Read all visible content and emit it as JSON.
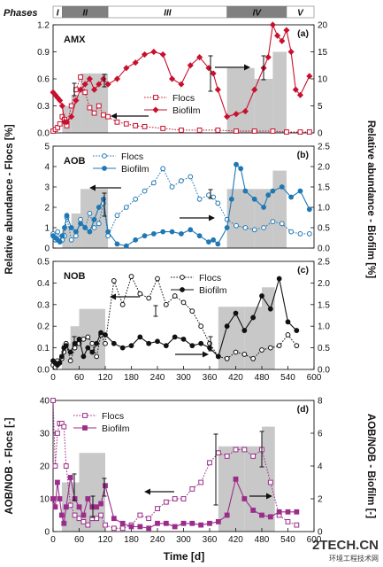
{
  "phases_label": "Phases",
  "phases": [
    {
      "name": "I",
      "from": 0,
      "to": 20,
      "shade": "#ffffff"
    },
    {
      "name": "II",
      "from": 20,
      "to": 120,
      "shade": "#808080"
    },
    {
      "name": "III",
      "from": 120,
      "to": 380,
      "shade": "#ffffff"
    },
    {
      "name": "IV",
      "from": 380,
      "to": 510,
      "shade": "#808080"
    },
    {
      "name": "V",
      "from": 510,
      "to": 570,
      "shade": "#ffffff"
    }
  ],
  "xlabel": "Time [d]",
  "ylabel_left": "Relative abundance - Flocs [%]",
  "ylabel_right": "Relative abundance - Biofilm [%]",
  "ylabel_left_d": "AOB/NOB - Flocs [-]",
  "ylabel_right_d": "AOB/NOB - Biofilm [-]",
  "watermark": "2TECH.CN",
  "watermark_sub": "环境工程技术网",
  "colors": {
    "amx": "#c8102e",
    "aob": "#1f77b4",
    "nob": "#111111",
    "ratio": "#9b2d8a",
    "bars": "#c8c8c8"
  },
  "chart_data": [
    {
      "type": "line",
      "tag": "AMX",
      "letter": "(a)",
      "xlim": [
        0,
        570
      ],
      "ylim_left": [
        0,
        1.2
      ],
      "ylim_right": [
        0,
        20
      ],
      "yticks_left": [
        "0.0",
        "0.3",
        "0.6",
        "0.9",
        "1.2"
      ],
      "yticks_right": [
        "0",
        "5",
        "10",
        "15",
        "20"
      ],
      "bars": [
        {
          "from": 20,
          "to": 40,
          "value": 5
        },
        {
          "from": 40,
          "to": 60,
          "value": 7
        },
        {
          "from": 60,
          "to": 120,
          "value": 11
        },
        {
          "from": 380,
          "to": 440,
          "value": 12
        },
        {
          "from": 440,
          "to": 480,
          "value": 10
        },
        {
          "from": 480,
          "to": 510,
          "value": 15
        }
      ],
      "series": [
        {
          "name": "Flocs",
          "axis": "left",
          "style": "dotted",
          "marker": "open-square",
          "x": [
            0,
            5,
            10,
            15,
            20,
            25,
            30,
            40,
            50,
            60,
            70,
            80,
            90,
            100,
            110,
            120,
            140,
            160,
            180,
            200,
            240,
            280,
            320,
            360,
            400,
            440,
            480,
            510,
            540,
            560
          ],
          "y": [
            0.02,
            0.04,
            0.06,
            0.1,
            0.18,
            0.15,
            0.08,
            0.3,
            0.48,
            0.62,
            0.45,
            0.28,
            0.22,
            0.3,
            0.2,
            0.18,
            0.12,
            0.1,
            0.08,
            0.07,
            0.05,
            0.03,
            0.03,
            0.03,
            0.02,
            0.02,
            0.02,
            0.01,
            0.01,
            0.01
          ]
        },
        {
          "name": "Biofilm",
          "axis": "right",
          "style": "solid",
          "marker": "filled-diamond",
          "x": [
            0,
            5,
            10,
            15,
            20,
            25,
            30,
            40,
            50,
            60,
            70,
            80,
            90,
            100,
            110,
            120,
            140,
            160,
            180,
            200,
            220,
            240,
            260,
            280,
            300,
            320,
            340,
            350,
            360,
            380,
            400,
            420,
            440,
            460,
            470,
            480,
            490,
            500,
            510,
            520,
            530,
            540,
            560
          ],
          "y": [
            7.5,
            7,
            6.5,
            6,
            5,
            2,
            2,
            3,
            6,
            8,
            9,
            10,
            8,
            9,
            10,
            9,
            10,
            12,
            13,
            14.5,
            15,
            14.5,
            10,
            9,
            12.5,
            14,
            12,
            11,
            8,
            3,
            3.5,
            4,
            8,
            12,
            14,
            20,
            18,
            17,
            19,
            15,
            8,
            7,
            10.5
          ]
        }
      ],
      "legend": [
        "Flocs",
        "Biofilm"
      ]
    },
    {
      "type": "line",
      "tag": "AOB",
      "letter": "(b)",
      "xlim": [
        0,
        570
      ],
      "ylim_left": [
        0,
        5
      ],
      "ylim_right": [
        0,
        2.5
      ],
      "yticks_left": [
        "0",
        "1",
        "2",
        "3",
        "4",
        "5"
      ],
      "yticks_right": [
        "0.0",
        "0.5",
        "1.0",
        "1.5",
        "2.0",
        "2.5"
      ],
      "bars": [
        {
          "from": 20,
          "to": 40,
          "value": 0.55
        },
        {
          "from": 40,
          "to": 60,
          "value": 0.85
        },
        {
          "from": 60,
          "to": 120,
          "value": 1.45
        },
        {
          "from": 380,
          "to": 440,
          "value": 1.45
        },
        {
          "from": 440,
          "to": 480,
          "value": 1.45
        },
        {
          "from": 480,
          "to": 510,
          "value": 1.9
        }
      ],
      "series": [
        {
          "name": "Flocs",
          "axis": "left",
          "style": "dotted",
          "marker": "open-circle",
          "x": [
            0,
            5,
            10,
            15,
            20,
            25,
            30,
            40,
            50,
            60,
            70,
            80,
            90,
            100,
            110,
            120,
            140,
            160,
            180,
            200,
            220,
            240,
            260,
            280,
            300,
            320,
            340,
            350,
            360,
            380,
            400,
            420,
            440,
            460,
            480,
            500,
            520,
            540,
            560
          ],
          "y": [
            0.7,
            0.4,
            0.8,
            0.5,
            0.4,
            0.6,
            1.5,
            0.4,
            0.6,
            1.4,
            1.0,
            1.7,
            1.0,
            1.2,
            2.2,
            0.6,
            1.6,
            2.0,
            2.4,
            2.8,
            3.2,
            3.9,
            3.0,
            3.3,
            3.5,
            2.4,
            2.6,
            2.5,
            2.2,
            1.4,
            1.1,
            1.0,
            0.9,
            1.0,
            1.3,
            1.2,
            0.8,
            0.7,
            0.7
          ]
        },
        {
          "name": "Biofilm",
          "axis": "right",
          "style": "solid",
          "marker": "filled-circle",
          "x": [
            0,
            5,
            10,
            15,
            20,
            25,
            30,
            40,
            50,
            60,
            70,
            80,
            90,
            100,
            110,
            120,
            140,
            160,
            180,
            200,
            220,
            240,
            260,
            280,
            300,
            320,
            340,
            350,
            360,
            380,
            390,
            400,
            410,
            420,
            440,
            460,
            470,
            480,
            500,
            520,
            540,
            560
          ],
          "y": [
            0.3,
            0.25,
            0.2,
            0.15,
            0.3,
            0.5,
            0.8,
            0.5,
            0.4,
            0.6,
            0.5,
            0.4,
            0.7,
            1.0,
            1.2,
            0.4,
            0.1,
            0.05,
            0.2,
            0.3,
            0.35,
            0.4,
            0.4,
            0.35,
            0.45,
            0.3,
            0.15,
            0.2,
            0.1,
            0.5,
            1.2,
            2.05,
            1.95,
            1.4,
            1.2,
            1.0,
            1.3,
            1.4,
            1.5,
            1.25,
            1.4,
            0.95
          ]
        }
      ],
      "legend": [
        "Flocs",
        "Biofilm"
      ]
    },
    {
      "type": "line",
      "tag": "NOB",
      "letter": "(c)",
      "xlim": [
        0,
        600
      ],
      "ylim_left": [
        0,
        0.5
      ],
      "ylim_right": [
        0,
        2.5
      ],
      "yticks_left": [
        "0.0",
        "0.1",
        "0.2",
        "0.3",
        "0.4",
        "0.5"
      ],
      "yticks_right": [
        "0.0",
        "0.5",
        "1.0",
        "1.5",
        "2.0",
        "2.5"
      ],
      "xticks": [
        "0",
        "60",
        "120",
        "180",
        "240",
        "300",
        "360",
        "420",
        "480",
        "540",
        "600"
      ],
      "bars": [
        {
          "from": 20,
          "to": 40,
          "value": 0.6
        },
        {
          "from": 40,
          "to": 60,
          "value": 1.0
        },
        {
          "from": 60,
          "to": 120,
          "value": 1.4
        },
        {
          "from": 380,
          "to": 440,
          "value": 1.45
        },
        {
          "from": 440,
          "to": 480,
          "value": 1.45
        },
        {
          "from": 480,
          "to": 510,
          "value": 1.9
        }
      ],
      "series": [
        {
          "name": "Flocs",
          "axis": "left",
          "style": "dotted",
          "marker": "open-circle",
          "x": [
            0,
            5,
            10,
            15,
            20,
            25,
            30,
            40,
            50,
            60,
            70,
            80,
            90,
            100,
            110,
            120,
            140,
            160,
            180,
            200,
            220,
            240,
            260,
            280,
            300,
            320,
            340,
            360,
            380,
            400,
            420,
            440,
            460,
            480,
            500,
            520,
            540,
            560
          ],
          "y": [
            0.02,
            0.01,
            0.04,
            0.03,
            0.05,
            0.08,
            0.12,
            0.04,
            0.1,
            0.12,
            0.14,
            0.15,
            0.12,
            0.06,
            0.16,
            0.12,
            0.41,
            0.3,
            0.43,
            0.35,
            0.33,
            0.42,
            0.3,
            0.34,
            0.31,
            0.27,
            0.2,
            0.12,
            0.06,
            0.05,
            0.08,
            0.07,
            0.05,
            0.09,
            0.1,
            0.11,
            0.16,
            0.11
          ]
        },
        {
          "name": "Biofilm",
          "axis": "right",
          "style": "solid",
          "marker": "filled-circle",
          "x": [
            0,
            5,
            10,
            15,
            20,
            25,
            30,
            40,
            50,
            60,
            70,
            80,
            90,
            100,
            110,
            120,
            140,
            160,
            180,
            200,
            220,
            240,
            260,
            280,
            300,
            320,
            340,
            360,
            380,
            400,
            420,
            440,
            460,
            480,
            500,
            520,
            540,
            560
          ],
          "y": [
            0.2,
            0.15,
            0.1,
            0.15,
            0.3,
            0.5,
            0.55,
            0.4,
            0.6,
            0.7,
            0.3,
            0.5,
            0.4,
            0.6,
            0.85,
            0.8,
            0.6,
            0.5,
            0.55,
            0.75,
            0.6,
            0.65,
            0.55,
            0.75,
            0.7,
            0.55,
            0.6,
            0.5,
            0.3,
            1.0,
            1.3,
            0.9,
            1.2,
            1.7,
            1.4,
            2.1,
            1.1,
            0.9
          ]
        }
      ],
      "legend": [
        "Flocs",
        "Biofilm"
      ]
    },
    {
      "type": "line",
      "tag": "",
      "letter": "(d)",
      "xlim": [
        0,
        600
      ],
      "ylim_left": [
        0,
        40
      ],
      "ylim_right": [
        0,
        8
      ],
      "yticks_left": [
        "0",
        "10",
        "20",
        "30",
        "40"
      ],
      "yticks_right": [
        "0",
        "2",
        "4",
        "6",
        "8"
      ],
      "xticks": [
        "0",
        "60",
        "120",
        "180",
        "240",
        "300",
        "360",
        "420",
        "480",
        "540",
        "600"
      ],
      "bars": [
        {
          "from": 20,
          "to": 40,
          "value": 3
        },
        {
          "from": 40,
          "to": 60,
          "value": 3
        },
        {
          "from": 60,
          "to": 120,
          "value": 4.8
        },
        {
          "from": 380,
          "to": 440,
          "value": 5.2
        },
        {
          "from": 440,
          "to": 480,
          "value": 5.2
        },
        {
          "from": 480,
          "to": 510,
          "value": 6.4
        }
      ],
      "series": [
        {
          "name": "Flocs",
          "axis": "left",
          "style": "dotted",
          "marker": "open-square",
          "x": [
            0,
            5,
            10,
            15,
            20,
            25,
            30,
            40,
            50,
            60,
            70,
            80,
            90,
            100,
            110,
            120,
            140,
            160,
            180,
            200,
            220,
            240,
            260,
            280,
            300,
            320,
            340,
            360,
            380,
            400,
            420,
            440,
            460,
            480,
            500,
            520,
            540,
            560
          ],
          "y": [
            40,
            20,
            30,
            33,
            33,
            32,
            20,
            8,
            5,
            4,
            3,
            2,
            4,
            4,
            5,
            2,
            1,
            1,
            2,
            5,
            4,
            7,
            9,
            10,
            10,
            13,
            15,
            21,
            24,
            23,
            25,
            25,
            23,
            25,
            15,
            5,
            3,
            2
          ]
        },
        {
          "name": "Biofilm",
          "axis": "right",
          "style": "solid",
          "marker": "filled-square",
          "x": [
            0,
            5,
            10,
            15,
            20,
            25,
            30,
            40,
            50,
            60,
            70,
            80,
            90,
            100,
            110,
            120,
            140,
            160,
            180,
            200,
            220,
            240,
            260,
            280,
            300,
            320,
            340,
            360,
            380,
            400,
            420,
            440,
            460,
            480,
            500,
            520,
            540,
            560
          ],
          "y": [
            2.0,
            1.5,
            3.0,
            2.0,
            1.0,
            0.5,
            1.5,
            3.3,
            2.0,
            1.5,
            1.0,
            2.0,
            1.5,
            1.5,
            1.7,
            2.8,
            0.8,
            0.5,
            0.3,
            0.3,
            0.2,
            0.5,
            0.5,
            0.3,
            0.5,
            0.5,
            0.4,
            0.5,
            0.6,
            1.0,
            3.2,
            2.0,
            1.3,
            1.0,
            0.9,
            1.2,
            1.2,
            1.2
          ]
        }
      ],
      "legend": [
        "Flocs",
        "Biofilm"
      ]
    }
  ]
}
